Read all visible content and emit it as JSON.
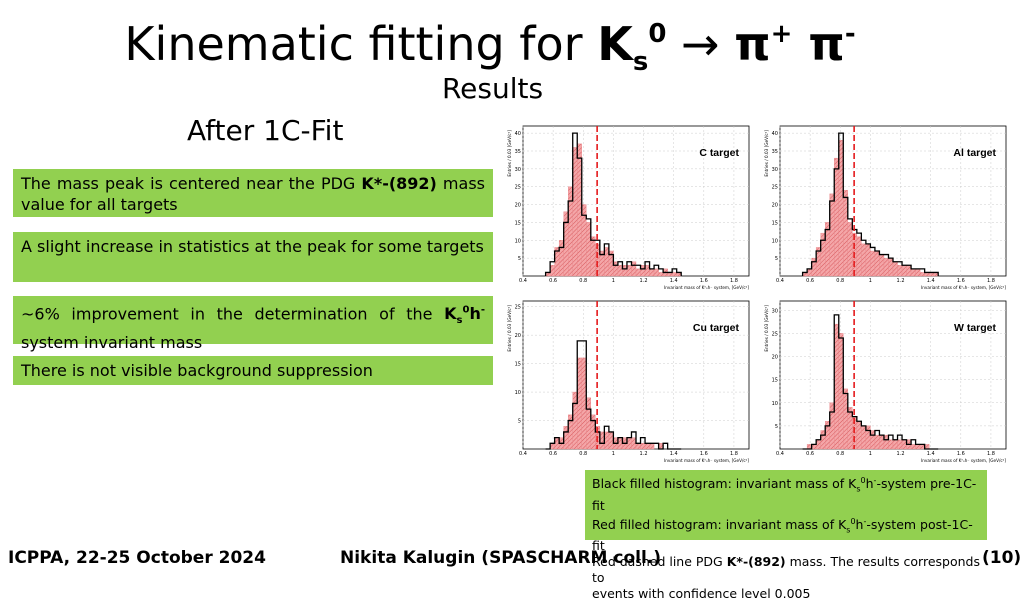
{
  "title": {
    "main": "Kinematic fitting for ",
    "k": "K",
    "k_sub": "s",
    "k_sup": "0",
    "arrow": " → ",
    "pi1": "π",
    "pi1_sup": "+",
    "pi2": " π",
    "pi2_sup": "-"
  },
  "subtitle": "Results",
  "after_fit": "After 1C-Fit",
  "bullets": {
    "b1_pre": "The mass peak is centered near the PDG ",
    "b1_bold": "K*-(892)",
    "b1_post": " mass value for all targets",
    "b2": "A slight increase in statistics at the peak for some targets",
    "b3_pre": "~6% improvement in the determination of the ",
    "b3_bold": "K",
    "b3_post": " system invariant mass",
    "b4": "There is not visible background suppression"
  },
  "legend": {
    "l1": "Black filled histogram: invariant mass of K",
    "l1b": "-system pre-1C-fit",
    "l2": "Red filled histogram: invariant mass of K",
    "l2b": "-system post-1C-fit",
    "l3a": "Red dashed line PDG ",
    "l3b": "K*-(892)",
    "l3c": " mass. The results corresponds to",
    "l4": "events with confidence level 0.005"
  },
  "footer": {
    "conference": "ICPPA, 22-25 October 2024",
    "author": "Nikita Kalugin (SPASCHARM coll.)",
    "page": "(10)"
  },
  "colors": {
    "green_box": "#92d050",
    "red": "#e41a1c",
    "red_fill": "#f4a6a8"
  },
  "chart_data": [
    {
      "type": "bar",
      "title": "C target",
      "xlabel": "Invariant mass of K⁰ₛh⁻ system, [GeV/c²]",
      "ylabel": "Entries / 0.03 [GeV/c²]",
      "xlim": [
        0.4,
        1.9
      ],
      "ylim": [
        0,
        42
      ],
      "yticks": [
        5,
        10,
        15,
        20,
        25,
        30,
        35,
        40
      ],
      "xticks": [
        0.4,
        0.6,
        0.8,
        1,
        1.2,
        1.4,
        1.6,
        1.8
      ],
      "pdg_line": 0.892,
      "bins_start": 0.55,
      "bin_width": 0.03,
      "series": [
        {
          "name": "pre-1C-fit",
          "values": [
            1,
            4,
            7,
            8,
            15,
            21,
            40,
            33,
            17,
            16,
            10,
            10,
            6,
            9,
            6,
            3,
            4,
            2,
            4,
            3,
            3,
            2,
            4,
            2,
            3,
            2,
            1,
            1,
            2,
            1
          ]
        },
        {
          "name": "post-1C-fit",
          "values": [
            1,
            3,
            8,
            10,
            18,
            25,
            36,
            37,
            20,
            15,
            11,
            9,
            7,
            8,
            7,
            4,
            3,
            3,
            3,
            4,
            2,
            3,
            3,
            2,
            2,
            1,
            2,
            1,
            1,
            1
          ]
        }
      ]
    },
    {
      "type": "bar",
      "title": "Al target",
      "xlabel": "Invariant mass of K⁰ₛh⁻ system, [GeV/c²]",
      "ylabel": "Entries / 0.03 [GeV/c²]",
      "xlim": [
        0.4,
        1.9
      ],
      "ylim": [
        0,
        42
      ],
      "yticks": [
        5,
        10,
        15,
        20,
        25,
        30,
        35,
        40
      ],
      "xticks": [
        0.4,
        0.6,
        0.8,
        1,
        1.2,
        1.4,
        1.6,
        1.8
      ],
      "pdg_line": 0.892,
      "bins_start": 0.55,
      "bin_width": 0.03,
      "series": [
        {
          "name": "pre-1C-fit",
          "values": [
            1,
            2,
            4,
            7,
            10,
            13,
            21,
            30,
            40,
            22,
            16,
            13,
            12,
            10,
            9,
            8,
            7,
            6,
            6,
            5,
            4,
            4,
            3,
            3,
            2,
            2,
            2,
            1,
            1,
            1
          ]
        },
        {
          "name": "post-1C-fit",
          "values": [
            1,
            2,
            5,
            8,
            12,
            15,
            23,
            33,
            38,
            24,
            15,
            12,
            11,
            9,
            9,
            7,
            7,
            6,
            5,
            5,
            4,
            3,
            3,
            3,
            2,
            2,
            1,
            1,
            1,
            1
          ]
        }
      ]
    },
    {
      "type": "bar",
      "title": "Cu target",
      "xlabel": "Invariant mass of K⁰ₛh⁻ system, [GeV/c²]",
      "ylabel": "Entries / 0.03 [GeV/c²]",
      "xlim": [
        0.4,
        1.9
      ],
      "ylim": [
        0,
        26
      ],
      "yticks": [
        5,
        10,
        15,
        20,
        25
      ],
      "xticks": [
        0.4,
        0.6,
        0.8,
        1,
        1.2,
        1.4,
        1.6,
        1.8
      ],
      "pdg_line": 0.892,
      "bins_start": 0.55,
      "bin_width": 0.03,
      "series": [
        {
          "name": "pre-1C-fit",
          "values": [
            0,
            1,
            2,
            1,
            3,
            5,
            8,
            19,
            19,
            7,
            5,
            3,
            1,
            4,
            3,
            1,
            2,
            1,
            2,
            3,
            1,
            2,
            1,
            1,
            1,
            0,
            1,
            0,
            0,
            0
          ]
        },
        {
          "name": "post-1C-fit",
          "values": [
            0,
            1,
            2,
            2,
            4,
            6,
            10,
            16,
            16,
            9,
            6,
            4,
            3,
            3,
            3,
            2,
            2,
            2,
            2,
            2,
            1,
            1,
            1,
            1,
            0,
            1,
            0,
            0,
            0,
            0
          ]
        }
      ]
    },
    {
      "type": "bar",
      "title": "W target",
      "xlabel": "Invariant mass of K⁰ₛh⁻ system, [GeV/c²]",
      "ylabel": "Entries / 0.03 [GeV/c²]",
      "xlim": [
        0.4,
        1.9
      ],
      "ylim": [
        0,
        32
      ],
      "yticks": [
        5,
        10,
        15,
        20,
        25,
        30
      ],
      "xticks": [
        0.4,
        0.6,
        0.8,
        1,
        1.2,
        1.4,
        1.6,
        1.8
      ],
      "pdg_line": 0.892,
      "bins_start": 0.55,
      "bin_width": 0.03,
      "series": [
        {
          "name": "pre-1C-fit",
          "values": [
            0,
            0,
            1,
            2,
            3,
            5,
            8,
            29,
            24,
            12,
            8,
            7,
            6,
            5,
            4,
            3,
            4,
            3,
            2,
            3,
            2,
            3,
            2,
            1,
            2,
            1,
            1,
            0,
            0,
            0
          ]
        },
        {
          "name": "post-1C-fit",
          "values": [
            0,
            1,
            1,
            2,
            4,
            6,
            10,
            27,
            25,
            13,
            9,
            7,
            6,
            5,
            5,
            4,
            3,
            3,
            3,
            2,
            2,
            2,
            2,
            2,
            1,
            1,
            1,
            1,
            0,
            0
          ]
        }
      ]
    }
  ]
}
